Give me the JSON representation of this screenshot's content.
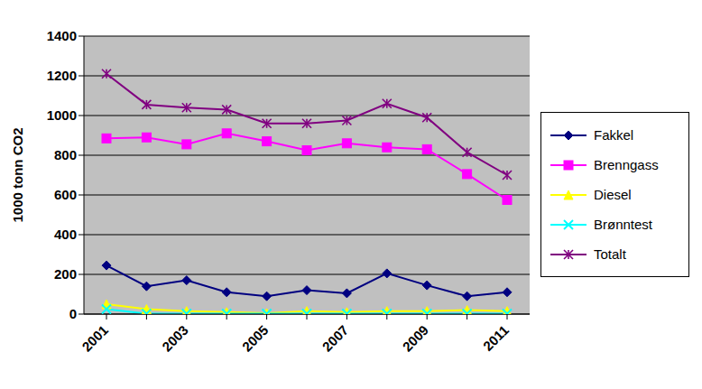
{
  "chart_data": {
    "type": "line",
    "y_label": "1000 tonn CO2",
    "categories": [
      "2001",
      null,
      "2003",
      null,
      "2005",
      null,
      "2007",
      null,
      "2009",
      null,
      "2011"
    ],
    "series": [
      {
        "name": "Fakkel",
        "color": "#000080",
        "marker": "diamond",
        "values": [
          245,
          140,
          170,
          110,
          90,
          120,
          105,
          205,
          145,
          90,
          110
        ]
      },
      {
        "name": "Brenngass",
        "color": "#ff00ff",
        "marker": "square",
        "values": [
          885,
          890,
          855,
          910,
          870,
          825,
          860,
          840,
          830,
          705,
          575
        ]
      },
      {
        "name": "Diesel",
        "color": "#ffff00",
        "marker": "triangle",
        "values": [
          50,
          25,
          15,
          10,
          5,
          15,
          10,
          15,
          15,
          20,
          15
        ]
      },
      {
        "name": "Brønntest",
        "color": "#00ffff",
        "marker": "x",
        "values": [
          25,
          2,
          2,
          2,
          2,
          2,
          2,
          2,
          2,
          2,
          2
        ]
      },
      {
        "name": "Totalt",
        "color": "#800080",
        "marker": "star",
        "values": [
          1210,
          1055,
          1040,
          1030,
          960,
          960,
          975,
          1060,
          990,
          815,
          700
        ]
      }
    ],
    "ylim": [
      0,
      1400
    ],
    "yticks": [
      0,
      200,
      400,
      600,
      800,
      1000,
      1200,
      1400
    ],
    "grid": true,
    "legend": "right"
  }
}
